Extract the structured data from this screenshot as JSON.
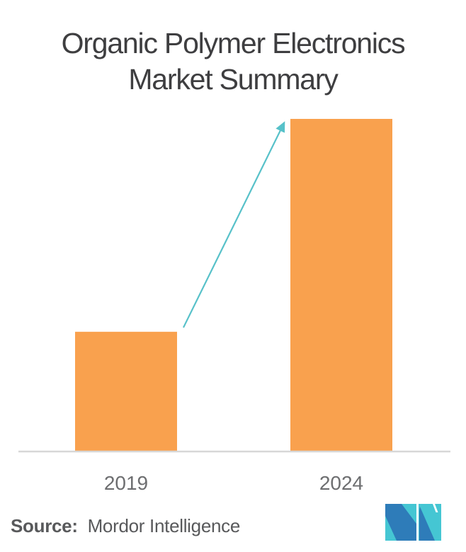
{
  "page": {
    "background": "#FFFFFF"
  },
  "title": {
    "line1": "Organic Polymer Electronics",
    "line2": "Market Summary",
    "color": "#3E3E40"
  },
  "chart_data": {
    "type": "bar",
    "title": "Organic Polymer Electronics Market Summary",
    "categories": [
      "2019",
      "2024"
    ],
    "values": [
      0.36,
      1.0
    ],
    "value_unit": "relative bar height (no numeric axis or data labels shown)",
    "xlabel": "",
    "ylabel": "",
    "grid": false,
    "legend": false,
    "bar_color": "#F9A14E",
    "axis_line_color": "#D7D7D7",
    "tick_label_color": "#6D6E70",
    "annotation": {
      "type": "growth-arrow",
      "from": "2019",
      "to": "2024",
      "color": "#57C1C9"
    }
  },
  "source": {
    "label": "Source:",
    "text": "Mordor Intelligence",
    "color": "#58595B"
  },
  "logo": {
    "name": "Mordor Intelligence logo",
    "teal": "#45C6D3",
    "blue": "#2E7CB9"
  }
}
